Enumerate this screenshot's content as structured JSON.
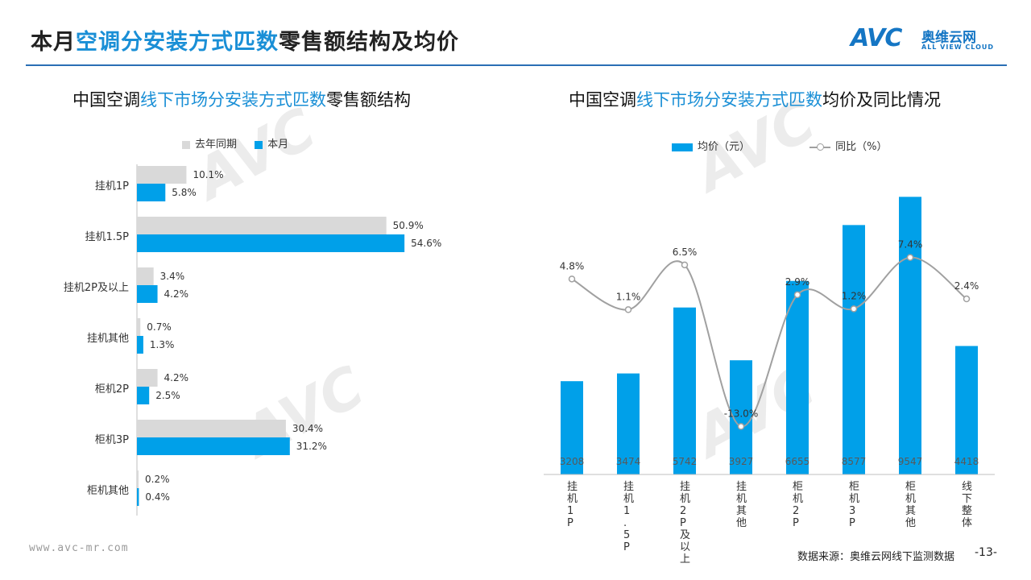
{
  "header": {
    "title_part1": "本月",
    "title_highlight": "空调分安装方式匹数",
    "title_part2": "零售额结构及均价",
    "logo_text": "AVC",
    "logo_cn": "奥维云网",
    "logo_en": "ALL VIEW CLOUD"
  },
  "left": {
    "subtitle_part1": "中国空调",
    "subtitle_highlight": "线下市场分安装方式匹数",
    "subtitle_part2": "零售额结构",
    "legend": [
      {
        "label": "去年同期",
        "color": "#d9d9d9"
      },
      {
        "label": "本月",
        "color": "#00a0e9"
      }
    ]
  },
  "right": {
    "subtitle_part1": "中国空调",
    "subtitle_highlight": "线下市场分安装方式匹数",
    "subtitle_part2": "均价及同比情况",
    "legend": [
      {
        "label": "均价（元）",
        "color": "#00a0e9"
      },
      {
        "label": "同比（%）",
        "color": "#a0a0a0"
      }
    ]
  },
  "chart_data": [
    {
      "type": "bar",
      "orientation": "horizontal",
      "categories": [
        "挂机1P",
        "挂机1.5P",
        "挂机2P及以上",
        "挂机其他",
        "柜机2P",
        "柜机3P",
        "柜机其他"
      ],
      "series": [
        {
          "name": "去年同期",
          "values": [
            10.1,
            50.9,
            3.4,
            0.7,
            4.2,
            30.4,
            0.2
          ],
          "labels": [
            "10.1%",
            "50.9%",
            "3.4%",
            "0.7%",
            "4.2%",
            "30.4%",
            "0.2%"
          ],
          "color": "#d9d9d9"
        },
        {
          "name": "本月",
          "values": [
            5.8,
            54.6,
            4.2,
            1.3,
            2.5,
            31.2,
            0.4
          ],
          "labels": [
            "5.8%",
            "54.6%",
            "4.2%",
            "1.3%",
            "2.5%",
            "31.2%",
            "0.4%"
          ],
          "color": "#00a0e9"
        }
      ],
      "xlim": [
        0,
        60
      ],
      "grid": false
    },
    {
      "type": "bar",
      "categories": [
        "挂机1P",
        "挂机1.5P",
        "挂机2P及以上",
        "挂机其他",
        "柜机2P",
        "柜机3P",
        "柜机其他",
        "线下整体"
      ],
      "series": [
        {
          "name": "均价（元）",
          "type": "bar",
          "values": [
            3208,
            3474,
            5742,
            3927,
            6655,
            8577,
            9547,
            4418
          ],
          "color": "#00a0e9"
        },
        {
          "name": "同比（%）",
          "type": "line",
          "values": [
            4.8,
            1.1,
            6.5,
            -13.0,
            2.9,
            1.2,
            7.4,
            2.4
          ],
          "labels": [
            "4.8%",
            "1.1%",
            "6.5%",
            "-13.0%",
            "2.9%",
            "1.2%",
            "7.4%",
            "2.4%"
          ],
          "color": "#a0a0a0"
        }
      ],
      "ylim": [
        0,
        10000
      ],
      "y2lim": [
        -15,
        20
      ],
      "grid": false
    }
  ],
  "footer": {
    "url": "www.avc-mr.com",
    "source": "数据来源：奥维云网线下监测数据",
    "page": "-13-"
  }
}
